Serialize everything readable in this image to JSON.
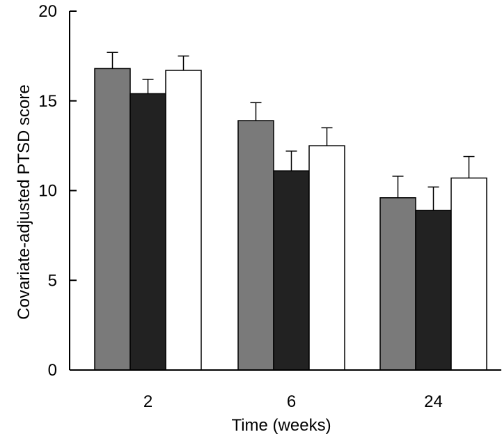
{
  "chart_data": {
    "type": "bar",
    "categories": [
      "2",
      "6",
      "24"
    ],
    "series": [
      {
        "values": [
          16.8,
          13.9,
          9.6
        ],
        "errors": [
          0.9,
          1.0,
          1.2
        ],
        "color": "#7a7a7a"
      },
      {
        "values": [
          15.4,
          11.1,
          8.9
        ],
        "errors": [
          0.8,
          1.1,
          1.3
        ],
        "color": "#222222"
      },
      {
        "values": [
          16.7,
          12.5,
          10.7
        ],
        "errors": [
          0.8,
          1.0,
          1.2
        ],
        "color": "#ffffff"
      }
    ],
    "title": "",
    "xlabel": "Time (weeks)",
    "ylabel": "Covariate-adjusted PTSD score",
    "ylim": [
      0,
      20
    ],
    "yticks": [
      "0",
      "5",
      "10",
      "15",
      "20"
    ],
    "grid": false,
    "legend": "none"
  }
}
